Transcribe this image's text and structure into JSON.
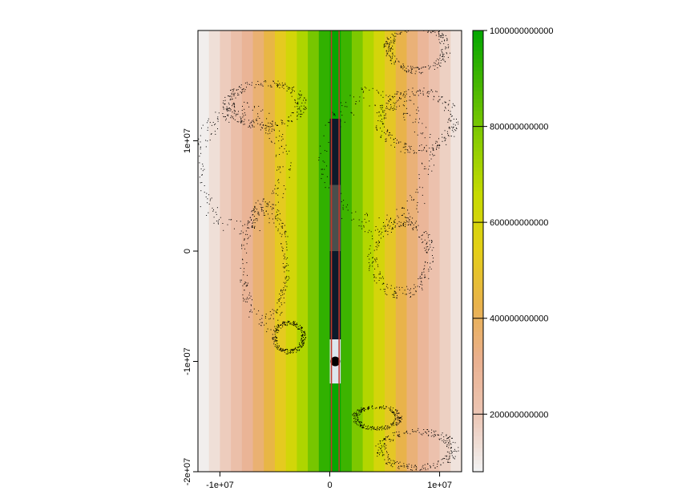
{
  "chart_data": {
    "type": "heatmap",
    "title": "",
    "xlabel": "",
    "ylabel": "",
    "xlim": [
      -12000000,
      12000000
    ],
    "ylim": [
      -20000000,
      20000000
    ],
    "x_ticks": [
      {
        "value": -10000000,
        "label": "-1e+07"
      },
      {
        "value": 0,
        "label": "0"
      },
      {
        "value": 10000000,
        "label": "1e+07"
      }
    ],
    "y_ticks": [
      {
        "value": -20000000,
        "label": "-2e+07"
      },
      {
        "value": -10000000,
        "label": "-1e+07"
      },
      {
        "value": 0,
        "label": "0"
      },
      {
        "value": 10000000,
        "label": "1e+07"
      }
    ],
    "raster": {
      "description_axis": "values vary with x only",
      "column_centers": [
        -11500000,
        -10500000,
        -9500000,
        -8500000,
        -7500000,
        -6500000,
        -5500000,
        -4500000,
        -3500000,
        -2500000,
        -1500000,
        -500000,
        500000,
        1500000,
        2500000,
        3500000,
        4500000,
        5500000,
        6500000,
        7500000,
        8500000,
        9500000,
        10500000,
        11500000
      ],
      "values": [
        90000000000,
        130000000000,
        180000000000,
        230000000000,
        290000000000,
        360000000000,
        440000000000,
        520000000000,
        610000000000,
        700000000000,
        800000000000,
        920000000000,
        990000000000,
        900000000000,
        790000000000,
        690000000000,
        600000000000,
        510000000000,
        430000000000,
        350000000000,
        280000000000,
        220000000000,
        170000000000,
        120000000000
      ]
    },
    "overlay_strip": {
      "x_range": [
        0,
        1000000
      ],
      "y_range": [
        -12000000,
        12000000
      ],
      "note": "dark satellite image strip"
    },
    "vertical_lines": [
      {
        "x": 150000,
        "color": "#c0392b"
      },
      {
        "x": 850000,
        "color": "#c0392b"
      }
    ],
    "legend": {
      "placement": "right",
      "range": [
        80000000000,
        1000000000000
      ],
      "ticks": [
        {
          "value": 200000000000,
          "label": "200000000000"
        },
        {
          "value": 400000000000,
          "label": "400000000000"
        },
        {
          "value": 600000000000,
          "label": "600000000000"
        },
        {
          "value": 800000000000,
          "label": "800000000000"
        },
        {
          "value": 1000000000000,
          "label": "1000000000000"
        }
      ]
    },
    "colors": {
      "palette": [
        "#f2f2f2",
        "#ecc6b5",
        "#eab08f",
        "#e9b24c",
        "#e4cf17",
        "#c6da00",
        "#88cc00",
        "#46b600",
        "#00a600"
      ]
    },
    "grid": false
  }
}
